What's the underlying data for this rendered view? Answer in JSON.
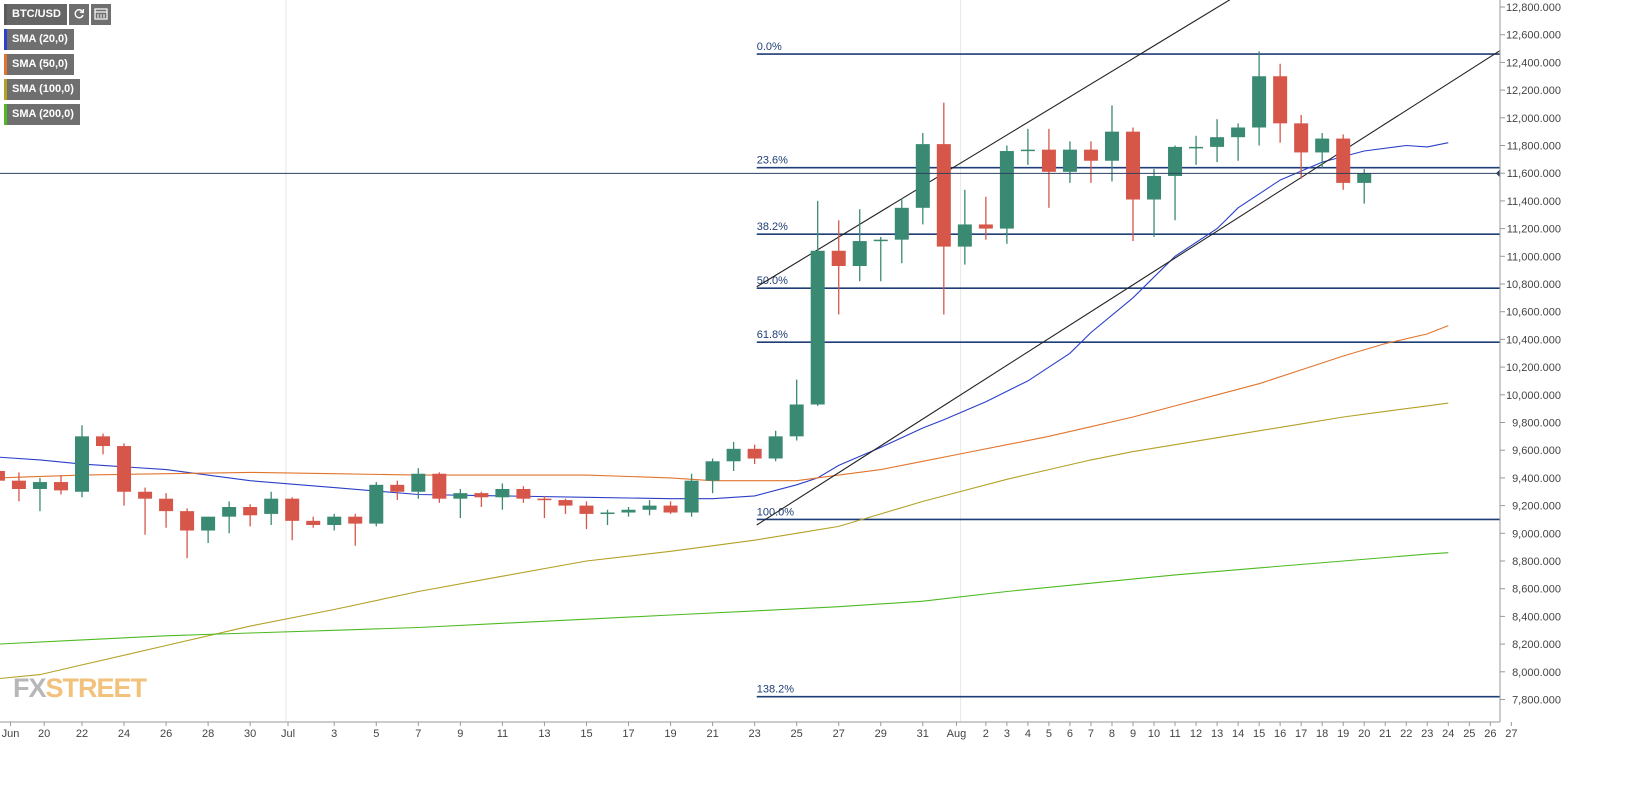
{
  "instrument": {
    "symbol": "BTC/USD"
  },
  "legend": [
    {
      "label": "SMA (20,0)",
      "color": "#2b3fc8"
    },
    {
      "label": "SMA (50,0)",
      "color": "#e2752d"
    },
    {
      "label": "SMA (100,0)",
      "color": "#b3a126"
    },
    {
      "label": "SMA (200,0)",
      "color": "#4fba24"
    }
  ],
  "icons": {
    "refresh": "refresh-icon",
    "calendar": "calendar-icon"
  },
  "watermark": {
    "part1": "FX",
    "part2": "STREET"
  },
  "chart_data": {
    "type": "candlestick",
    "price_axis": {
      "ticks": [
        7800,
        8000,
        8200,
        8400,
        8600,
        8800,
        9000,
        9200,
        9400,
        9600,
        9800,
        10000,
        10200,
        10400,
        10600,
        10800,
        11000,
        11200,
        11400,
        11600,
        11800,
        12000,
        12200,
        12400,
        12600,
        12800
      ],
      "tick_labels": [
        "7,800.000",
        "8,000.000",
        "8,200.000",
        "8,400.000",
        "8,600.000",
        "8,800.000",
        "9,000.000",
        "9,200.000",
        "9,400.000",
        "9,600.000",
        "9,800.000",
        "10,000.000",
        "10,200.000",
        "10,400.000",
        "10,600.000",
        "10,800.000",
        "11,000.000",
        "11,200.000",
        "11,400.000",
        "11,600.000",
        "11,800.000",
        "12,000.000",
        "12,200.000",
        "12,400.000",
        "12,600.000",
        "12,800.000"
      ],
      "range": [
        7680,
        12840
      ]
    },
    "current_price": {
      "value": 11599.087,
      "label": "11,599.087",
      "color": "#2c4160"
    },
    "time_axis": {
      "labels": [
        "Jun",
        "20",
        "22",
        "24",
        "26",
        "28",
        "30",
        "Jul",
        "3",
        "5",
        "7",
        "9",
        "11",
        "13",
        "15",
        "17",
        "19",
        "21",
        "23",
        "25",
        "27",
        "29",
        "31",
        "Aug",
        "2",
        "3",
        "4",
        "5",
        "6",
        "7",
        "8",
        "9",
        "10",
        "11",
        "12",
        "13",
        "14",
        "15",
        "16",
        "17",
        "18",
        "19",
        "20",
        "21",
        "22",
        "23",
        "24",
        "25",
        "26",
        "27"
      ],
      "label_slot": [
        -3.4,
        -1.8,
        0,
        2,
        4,
        6,
        8,
        9.8,
        12,
        14,
        16,
        18,
        20,
        22,
        24,
        26,
        28,
        30,
        32,
        34,
        36,
        38,
        40,
        41.6,
        43,
        44,
        45,
        46,
        47,
        48,
        49,
        50,
        51,
        52,
        53,
        54,
        55,
        56,
        57,
        58,
        59,
        60,
        61,
        62,
        63,
        64,
        65,
        66,
        67,
        68
      ],
      "gridline_slots": [
        9.7,
        41.8
      ]
    },
    "candles": [
      {
        "o": 9450,
        "h": 9490,
        "l": 9350,
        "c": 9380
      },
      {
        "o": 9380,
        "h": 9440,
        "l": 9230,
        "c": 9320
      },
      {
        "o": 9320,
        "h": 9400,
        "l": 9160,
        "c": 9370
      },
      {
        "o": 9370,
        "h": 9420,
        "l": 9280,
        "c": 9310
      },
      {
        "o": 9300,
        "h": 9780,
        "l": 9260,
        "c": 9700
      },
      {
        "o": 9700,
        "h": 9720,
        "l": 9570,
        "c": 9630
      },
      {
        "o": 9630,
        "h": 9650,
        "l": 9200,
        "c": 9300
      },
      {
        "o": 9300,
        "h": 9330,
        "l": 8990,
        "c": 9250
      },
      {
        "o": 9250,
        "h": 9290,
        "l": 9040,
        "c": 9160
      },
      {
        "o": 9160,
        "h": 9180,
        "l": 8820,
        "c": 9020
      },
      {
        "o": 9020,
        "h": 9120,
        "l": 8930,
        "c": 9120
      },
      {
        "o": 9120,
        "h": 9230,
        "l": 9000,
        "c": 9190
      },
      {
        "o": 9190,
        "h": 9210,
        "l": 9050,
        "c": 9130
      },
      {
        "o": 9140,
        "h": 9300,
        "l": 9060,
        "c": 9250
      },
      {
        "o": 9250,
        "h": 9260,
        "l": 8950,
        "c": 9090
      },
      {
        "o": 9090,
        "h": 9120,
        "l": 9040,
        "c": 9060
      },
      {
        "o": 9060,
        "h": 9140,
        "l": 9020,
        "c": 9120
      },
      {
        "o": 9120,
        "h": 9140,
        "l": 8910,
        "c": 9070
      },
      {
        "o": 9070,
        "h": 9370,
        "l": 9050,
        "c": 9350
      },
      {
        "o": 9350,
        "h": 9380,
        "l": 9240,
        "c": 9300
      },
      {
        "o": 9300,
        "h": 9470,
        "l": 9250,
        "c": 9430
      },
      {
        "o": 9430,
        "h": 9440,
        "l": 9220,
        "c": 9250
      },
      {
        "o": 9250,
        "h": 9320,
        "l": 9110,
        "c": 9290
      },
      {
        "o": 9290,
        "h": 9300,
        "l": 9190,
        "c": 9260
      },
      {
        "o": 9260,
        "h": 9360,
        "l": 9170,
        "c": 9320
      },
      {
        "o": 9320,
        "h": 9340,
        "l": 9220,
        "c": 9250
      },
      {
        "o": 9250,
        "h": 9270,
        "l": 9110,
        "c": 9240
      },
      {
        "o": 9240,
        "h": 9250,
        "l": 9140,
        "c": 9200
      },
      {
        "o": 9200,
        "h": 9230,
        "l": 9030,
        "c": 9140
      },
      {
        "o": 9140,
        "h": 9170,
        "l": 9060,
        "c": 9150
      },
      {
        "o": 9150,
        "h": 9190,
        "l": 9120,
        "c": 9170
      },
      {
        "o": 9170,
        "h": 9240,
        "l": 9130,
        "c": 9200
      },
      {
        "o": 9200,
        "h": 9230,
        "l": 9140,
        "c": 9150
      },
      {
        "o": 9150,
        "h": 9430,
        "l": 9120,
        "c": 9380
      },
      {
        "o": 9380,
        "h": 9540,
        "l": 9290,
        "c": 9520
      },
      {
        "o": 9520,
        "h": 9660,
        "l": 9450,
        "c": 9610
      },
      {
        "o": 9610,
        "h": 9640,
        "l": 9500,
        "c": 9540
      },
      {
        "o": 9540,
        "h": 9740,
        "l": 9520,
        "c": 9700
      },
      {
        "o": 9700,
        "h": 10110,
        "l": 9670,
        "c": 9930
      },
      {
        "o": 9930,
        "h": 11400,
        "l": 9920,
        "c": 11040
      },
      {
        "o": 11040,
        "h": 11260,
        "l": 10580,
        "c": 10930
      },
      {
        "o": 10930,
        "h": 11340,
        "l": 10820,
        "c": 11110
      },
      {
        "o": 11110,
        "h": 11140,
        "l": 10820,
        "c": 11120
      },
      {
        "o": 11120,
        "h": 11420,
        "l": 10950,
        "c": 11350
      },
      {
        "o": 11350,
        "h": 11890,
        "l": 11230,
        "c": 11810
      },
      {
        "o": 11810,
        "h": 12110,
        "l": 10580,
        "c": 11070
      },
      {
        "o": 11070,
        "h": 11480,
        "l": 10940,
        "c": 11230
      },
      {
        "o": 11230,
        "h": 11430,
        "l": 11120,
        "c": 11200
      },
      {
        "o": 11200,
        "h": 11800,
        "l": 11090,
        "c": 11760
      },
      {
        "o": 11760,
        "h": 11920,
        "l": 11660,
        "c": 11770
      },
      {
        "o": 11770,
        "h": 11920,
        "l": 11350,
        "c": 11610
      },
      {
        "o": 11610,
        "h": 11830,
        "l": 11530,
        "c": 11770
      },
      {
        "o": 11770,
        "h": 11830,
        "l": 11530,
        "c": 11690
      },
      {
        "o": 11690,
        "h": 12090,
        "l": 11540,
        "c": 11900
      },
      {
        "o": 11900,
        "h": 11930,
        "l": 11110,
        "c": 11410
      },
      {
        "o": 11410,
        "h": 11630,
        "l": 11140,
        "c": 11580
      },
      {
        "o": 11580,
        "h": 11800,
        "l": 11260,
        "c": 11790
      },
      {
        "o": 11790,
        "h": 11870,
        "l": 11660,
        "c": 11790
      },
      {
        "o": 11790,
        "h": 11990,
        "l": 11680,
        "c": 11860
      },
      {
        "o": 11860,
        "h": 11960,
        "l": 11690,
        "c": 11930
      },
      {
        "o": 11930,
        "h": 12480,
        "l": 11800,
        "c": 12300
      },
      {
        "o": 12300,
        "h": 12390,
        "l": 11820,
        "c": 11960
      },
      {
        "o": 11960,
        "h": 12020,
        "l": 11560,
        "c": 11750
      },
      {
        "o": 11750,
        "h": 11890,
        "l": 11640,
        "c": 11850
      },
      {
        "o": 11850,
        "h": 11880,
        "l": 11480,
        "c": 11530
      },
      {
        "o": 11530,
        "h": 11630,
        "l": 11380,
        "c": 11599
      }
    ],
    "series": [
      {
        "name": "SMA (20,0)",
        "color": "#2b3fc8",
        "x": [
          -4,
          -2,
          0,
          2,
          4,
          8,
          12,
          16,
          20,
          24,
          28,
          30,
          32,
          34,
          35,
          36,
          38,
          40,
          41,
          43,
          45,
          47,
          48,
          50,
          52,
          54,
          55,
          57,
          59,
          61,
          63,
          64,
          65
        ],
        "y": [
          9550,
          9530,
          9500,
          9480,
          9460,
          9380,
          9330,
          9280,
          9270,
          9260,
          9250,
          9250,
          9270,
          9350,
          9400,
          9490,
          9620,
          9760,
          9820,
          9950,
          10100,
          10300,
          10450,
          10700,
          11000,
          11200,
          11350,
          11550,
          11680,
          11760,
          11800,
          11790,
          11820
        ]
      },
      {
        "name": "SMA (50,0)",
        "color": "#e2752d",
        "x": [
          -4,
          0,
          4,
          8,
          12,
          16,
          20,
          24,
          28,
          30,
          32,
          34,
          36,
          38,
          40,
          42,
          44,
          46,
          48,
          50,
          52,
          54,
          56,
          58,
          60,
          62,
          64,
          65
        ],
        "y": [
          9400,
          9420,
          9430,
          9440,
          9430,
          9420,
          9420,
          9420,
          9400,
          9380,
          9380,
          9380,
          9420,
          9460,
          9520,
          9580,
          9640,
          9700,
          9770,
          9840,
          9920,
          10000,
          10080,
          10180,
          10280,
          10370,
          10440,
          10500
        ]
      },
      {
        "name": "SMA (100,0)",
        "color": "#b3a126",
        "x": [
          -4,
          -2,
          0,
          4,
          8,
          12,
          16,
          20,
          24,
          28,
          32,
          34,
          36,
          38,
          40,
          42,
          44,
          46,
          48,
          50,
          52,
          54,
          56,
          58,
          60,
          62,
          64,
          65
        ],
        "y": [
          7950,
          7980,
          8050,
          8190,
          8330,
          8450,
          8580,
          8690,
          8800,
          8870,
          8950,
          9000,
          9050,
          9140,
          9230,
          9310,
          9390,
          9460,
          9530,
          9590,
          9640,
          9690,
          9740,
          9790,
          9840,
          9880,
          9920,
          9940
        ]
      },
      {
        "name": "SMA (200,0)",
        "color": "#4fba24",
        "x": [
          -4,
          0,
          4,
          8,
          12,
          16,
          20,
          24,
          28,
          32,
          36,
          40,
          44,
          48,
          52,
          56,
          60,
          64,
          65
        ],
        "y": [
          8200,
          8230,
          8260,
          8280,
          8300,
          8320,
          8350,
          8380,
          8410,
          8440,
          8470,
          8510,
          8580,
          8640,
          8700,
          8750,
          8800,
          8850,
          8860
        ]
      }
    ],
    "fibonacci": {
      "start_slot": 32.1,
      "color": "#1f3d76",
      "levels": [
        {
          "label": "0.0%",
          "value": 12460
        },
        {
          "label": "23.6%",
          "value": 11640
        },
        {
          "label": "38.2%",
          "value": 11160
        },
        {
          "label": "50.0%",
          "value": 10770
        },
        {
          "label": "61.8%",
          "value": 10380
        },
        {
          "label": "100.0%",
          "value": 9100
        },
        {
          "label": "138.2%",
          "value": 7820
        }
      ]
    },
    "trendlines": [
      {
        "from": {
          "x": 32.1,
          "y": 10780
        },
        "to": {
          "x": 54.8,
          "y": 12870
        },
        "color": "#222222"
      },
      {
        "from": {
          "x": 32.1,
          "y": 9060
        },
        "to": {
          "x": 70.4,
          "y": 12770
        },
        "color": "#222222"
      }
    ]
  }
}
